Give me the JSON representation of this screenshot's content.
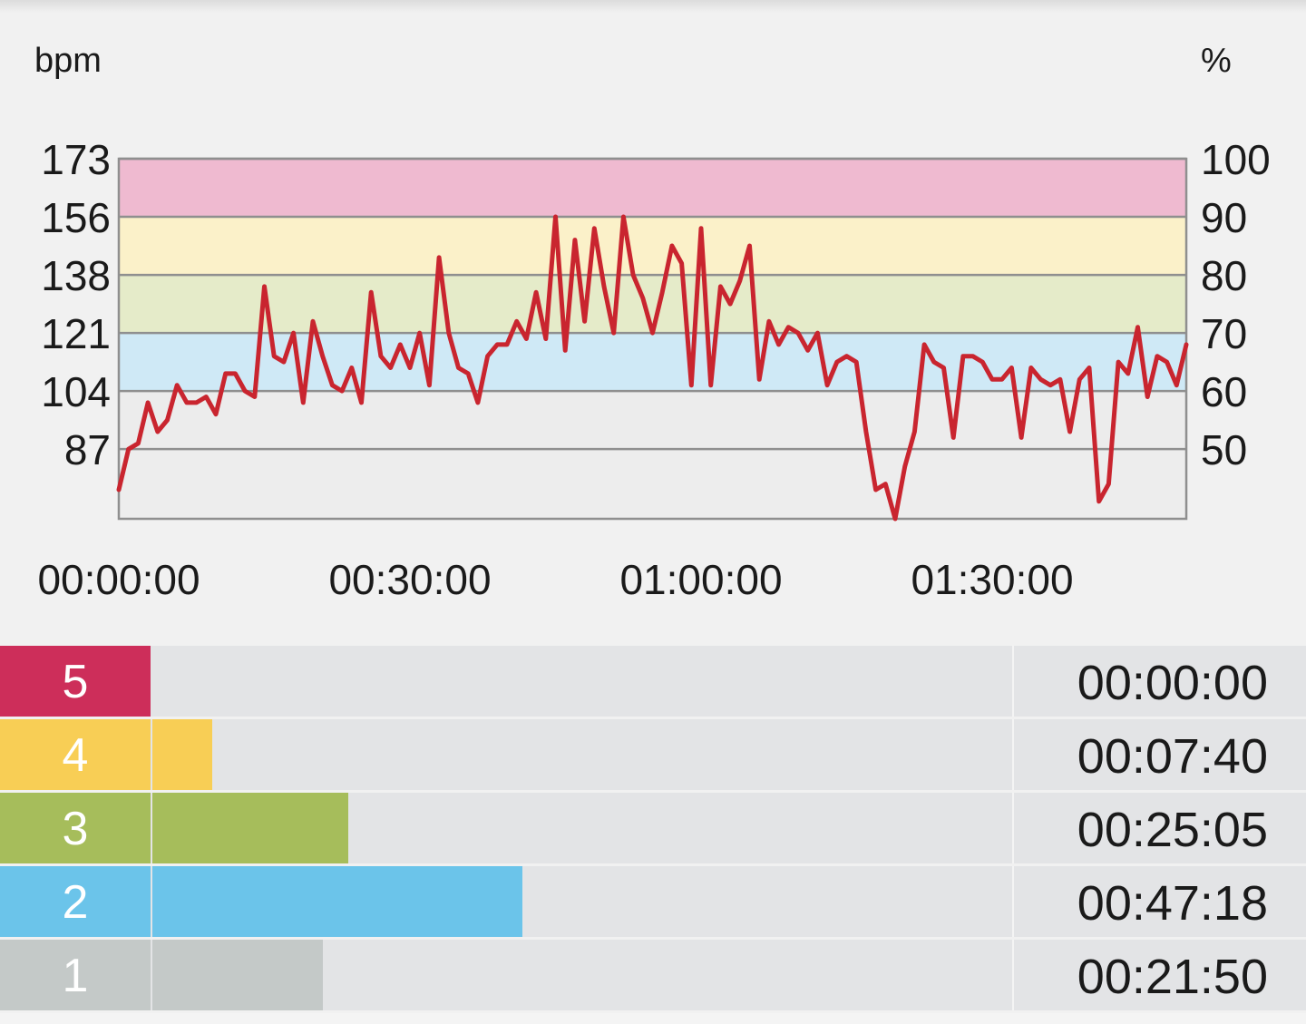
{
  "chart_data": {
    "type": "line",
    "left_axis_unit": "bpm",
    "right_axis_unit": "%",
    "left_ticks": [
      173,
      156,
      138,
      121,
      104,
      87
    ],
    "right_ticks": [
      100,
      90,
      80,
      70,
      60,
      50
    ],
    "x_ticks": [
      "00:00:00",
      "00:30:00",
      "01:00:00",
      "01:30:00"
    ],
    "x_tick_minutes": [
      0,
      30,
      60,
      90
    ],
    "x_range_minutes": [
      0,
      110
    ],
    "y_range_percent": [
      38,
      100
    ],
    "zone_bands": [
      {
        "from": 50,
        "to": 60,
        "color": "#ececec"
      },
      {
        "from": 60,
        "to": 70,
        "color": "#cfe9f6"
      },
      {
        "from": 70,
        "to": 80,
        "color": "#e5ebc9"
      },
      {
        "from": 80,
        "to": 90,
        "color": "#fbf1c9"
      },
      {
        "from": 90,
        "to": 100,
        "color": "#efbad0"
      }
    ],
    "series_color": "#c9252f",
    "series": [
      {
        "x": [
          0,
          1,
          2,
          3,
          4,
          5,
          6,
          7,
          8,
          9,
          10,
          11,
          12,
          13,
          14,
          15,
          16,
          17,
          18,
          19,
          20,
          21,
          22,
          23,
          24,
          25,
          26,
          27,
          28,
          29,
          30,
          31,
          32,
          33,
          34,
          35,
          36,
          37,
          38,
          39,
          40,
          41,
          42,
          43,
          44,
          45,
          46,
          47,
          48,
          49,
          50,
          51,
          52,
          53,
          54,
          55,
          56,
          57,
          58,
          59,
          60,
          61,
          62,
          63,
          64,
          65,
          66,
          67,
          68,
          69,
          70,
          71,
          72,
          73,
          74,
          75,
          76,
          77,
          78,
          79,
          80,
          81,
          82,
          83,
          84,
          85,
          86,
          87,
          88,
          89,
          90,
          91,
          92,
          93,
          94,
          95,
          96,
          97,
          98,
          99,
          100,
          101,
          102,
          103,
          104,
          105,
          106,
          107,
          108,
          109,
          110
        ],
        "y": [
          43,
          50,
          51,
          58,
          53,
          55,
          61,
          58,
          58,
          59,
          56,
          63,
          63,
          60,
          59,
          78,
          66,
          65,
          70,
          58,
          72,
          66,
          61,
          60,
          64,
          58,
          77,
          66,
          64,
          68,
          64,
          70,
          61,
          83,
          70,
          64,
          63,
          58,
          66,
          68,
          68,
          72,
          69,
          77,
          69,
          90,
          67,
          86,
          72,
          88,
          78,
          70,
          90,
          80,
          76,
          70,
          77,
          85,
          82,
          61,
          88,
          61,
          78,
          75,
          79,
          85,
          62,
          72,
          68,
          71,
          70,
          67,
          70,
          61,
          65,
          66,
          65,
          53,
          43,
          44,
          38,
          47,
          53,
          68,
          65,
          64,
          52,
          66,
          66,
          65,
          62,
          62,
          64,
          52,
          64,
          62,
          61,
          62,
          53,
          62,
          64,
          41,
          44,
          65,
          63,
          71,
          59,
          66,
          65,
          61,
          68
        ]
      }
    ]
  },
  "zones": [
    {
      "label": "5",
      "time": "00:00:00",
      "color": "#cd2e5a",
      "fraction": 0.0
    },
    {
      "label": "4",
      "time": "00:07:40",
      "color": "#f8ce55",
      "fraction": 0.0697
    },
    {
      "label": "3",
      "time": "00:25:05",
      "color": "#a6bd5b",
      "fraction": 0.228
    },
    {
      "label": "2",
      "time": "00:47:18",
      "color": "#6bc4ea",
      "fraction": 0.43
    },
    {
      "label": "1",
      "time": "00:21:50",
      "color": "#c4c9c8",
      "fraction": 0.1985
    }
  ]
}
